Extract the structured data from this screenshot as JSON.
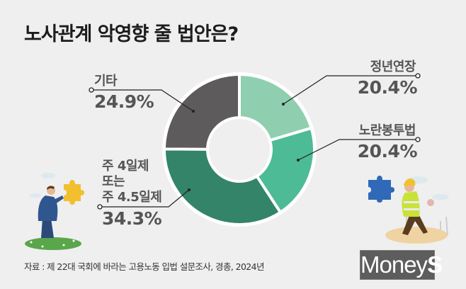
{
  "title": "노사관계 악영향 줄 법안은?",
  "chart_data": {
    "type": "pie",
    "subtype": "donut",
    "title": "노사관계 악영향 줄 법안은?",
    "categories": [
      "정년연장",
      "노란봉투법",
      "주 4일제 또는 주 4.5일제",
      "기타"
    ],
    "values": [
      20.4,
      20.4,
      34.3,
      24.9
    ],
    "unit": "%",
    "colors": [
      "#8fcfb0",
      "#4dbb96",
      "#338468",
      "#5d5b5c"
    ],
    "start_angle": "12 o'clock",
    "direction": "clockwise",
    "source": "자료 : 제 22대 국회에 바라는 고용노동 입법 설문조사, 경총, 2024년"
  },
  "labels": {
    "retirement": {
      "name": "정년연장",
      "pct": "20.4%"
    },
    "yellow_envelope": {
      "name": "노란봉투법",
      "pct": "20.4%"
    },
    "four_day": {
      "line1": "주 4일제",
      "line2": "또는",
      "line3": "주 4.5일제",
      "pct": "34.3%"
    },
    "other": {
      "name": "기타",
      "pct": "24.9%"
    }
  },
  "source": "자료 : 제 22대 국회에 바라는 고용노동 입법 설문조사, 경총, 2024년",
  "logo": {
    "main": "Money",
    "accent": "S"
  },
  "colors": {
    "background": "#efefef",
    "slice_light": "#8fcfb0",
    "slice_medium": "#4dbb96",
    "slice_dark": "#338468",
    "slice_gray": "#5d5b5c",
    "label_text": "#555555"
  }
}
